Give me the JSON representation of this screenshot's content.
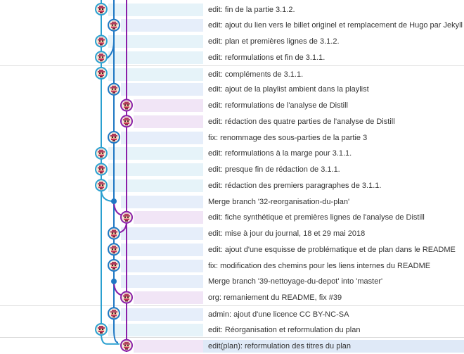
{
  "colors": {
    "lane0": "#2aa0d0",
    "lane1": "#1f78c4",
    "lane2": "#8a1fa8",
    "bg0": "#e6f3f9",
    "bg1": "#e6eefa",
    "bg2": "#f1e5f6",
    "selected": "#dfe9f7"
  },
  "avatar_icon": "pixel-avatar-icon",
  "commits": [
    {
      "lane": 0,
      "kind": "avatar",
      "message": "edit: fin de la partie 3.1.2."
    },
    {
      "lane": 1,
      "kind": "avatar",
      "message": "edit: ajout du lien vers le billet originel et remplacement de Hugo par Jekyll"
    },
    {
      "lane": 0,
      "kind": "avatar",
      "message": "edit: plan et premières lignes de 3.1.2."
    },
    {
      "lane": 0,
      "kind": "avatar",
      "message": "edit: reformulations et fin de 3.1.1."
    },
    {
      "lane": 0,
      "kind": "avatar",
      "message": "edit: compléments de 3.1.1.",
      "separator": true
    },
    {
      "lane": 1,
      "kind": "avatar",
      "message": "edit: ajout de la playlist ambient dans la playlist"
    },
    {
      "lane": 2,
      "kind": "avatar",
      "message": "edit: reformulations de l'analyse de Distill"
    },
    {
      "lane": 2,
      "kind": "avatar",
      "message": "edit: rédaction des quatre parties de l'analyse de Distill"
    },
    {
      "lane": 1,
      "kind": "avatar",
      "message": "fix: renommage des sous-parties de la partie 3"
    },
    {
      "lane": 0,
      "kind": "avatar",
      "message": "edit: reformulations à la marge pour 3.1.1."
    },
    {
      "lane": 0,
      "kind": "avatar",
      "message": "edit: presque fin de rédaction de 3.1.1."
    },
    {
      "lane": 0,
      "kind": "avatar",
      "message": "edit: rédaction des premiers paragraphes de 3.1.1."
    },
    {
      "lane": 1,
      "kind": "merge",
      "message": "Merge branch '32-reorganisation-du-plan'"
    },
    {
      "lane": 2,
      "kind": "avatar",
      "message": "edit: fiche synthétique et premières lignes de l'analyse de Distill"
    },
    {
      "lane": 1,
      "kind": "avatar",
      "message": "edit: mise à jour du journal, 18 et 29 mai 2018"
    },
    {
      "lane": 1,
      "kind": "avatar",
      "message": "edit: ajout d'une esquisse de problématique et de plan dans le README"
    },
    {
      "lane": 1,
      "kind": "avatar",
      "message": "fix: modification des chemins pour les liens internes du README"
    },
    {
      "lane": 1,
      "kind": "merge",
      "message": "Merge branch '39-nettoyage-du-depot' into 'master'"
    },
    {
      "lane": 2,
      "kind": "avatar",
      "message": "org: remaniement du README, fix #39"
    },
    {
      "lane": 1,
      "kind": "avatar",
      "message": "admin: ajout d'une licence CC BY-NC-SA",
      "separator": true
    },
    {
      "lane": 0,
      "kind": "avatar",
      "message": "edit: Réorganisation et reformulation du plan"
    },
    {
      "lane": 2,
      "kind": "avatar",
      "message": "edit(plan): reformulation des titres du plan",
      "separator": true,
      "selected": true
    }
  ]
}
